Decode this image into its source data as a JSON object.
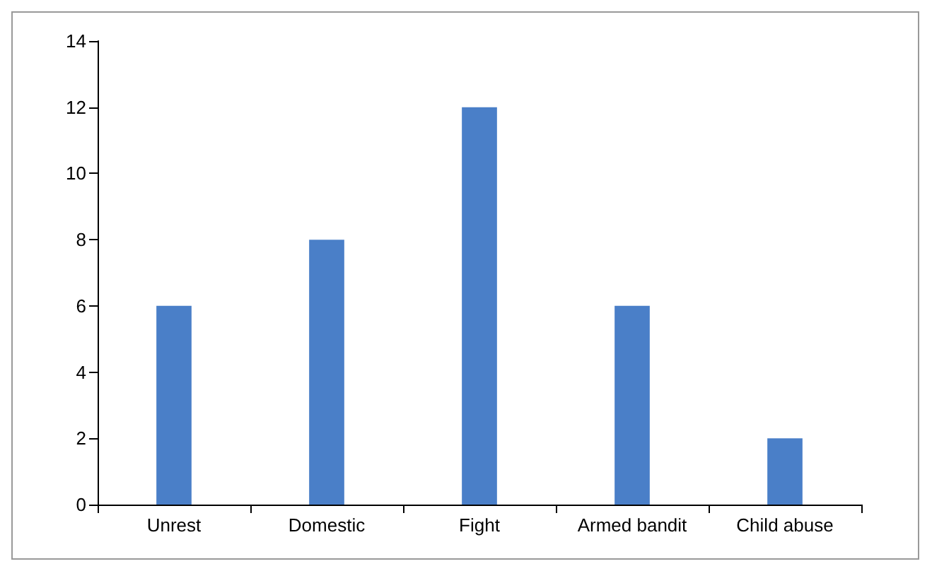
{
  "chart_data": {
    "type": "bar",
    "categories": [
      "Unrest",
      "Domestic",
      "Fight",
      "Armed bandit",
      "Child abuse"
    ],
    "values": [
      6,
      8,
      12,
      6,
      2
    ],
    "color": "#4a7fc8",
    "ylim": [
      0,
      14
    ],
    "yticks": [
      0,
      2,
      4,
      6,
      8,
      10,
      12,
      14
    ]
  }
}
